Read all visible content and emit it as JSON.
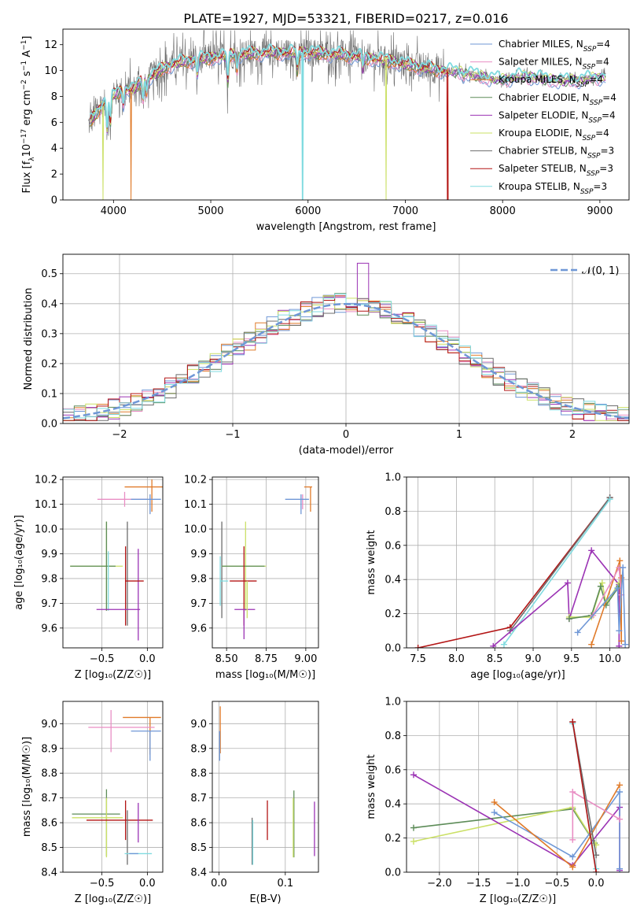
{
  "figure_title": "PLATE=1927, MJD=53321, FIBERID=0217, z=0.016",
  "colors": {
    "Chabrier MILES": "#6f97d6",
    "Salpeter MILES": "#e98ec4",
    "Kroupa MILES": "#e07b2a",
    "Chabrier ELODIE": "#5d8c58",
    "Salpeter ELODIE": "#9b33b4",
    "Kroupa ELODIE": "#cbe066",
    "Chabrier STELIB": "#6d6d6d",
    "Salpeter STELIB": "#b31515",
    "Kroupa STELIB": "#80dbe0",
    "normal": "#6f97d6",
    "grid": "#b0b0b0"
  },
  "chart_data": [
    {
      "type": "line",
      "id": "spectrum",
      "title": "PLATE=1927, MJD=53321, FIBERID=0217, z=0.016",
      "xlabel": "wavelength [Angstrom, rest frame]",
      "ylabel_parts": [
        "Flux [f",
        "λ",
        "10",
        "−17",
        " erg cm",
        "−2",
        " s",
        "−1",
        " A",
        "−1",
        "]"
      ],
      "xlim": [
        3480,
        9300
      ],
      "ylim": [
        0,
        13.2
      ],
      "xticks": [
        4000,
        5000,
        6000,
        7000,
        8000,
        9000
      ],
      "yticks": [
        0,
        2,
        4,
        6,
        8,
        10,
        12
      ],
      "legend_position": "top-right",
      "legend": [
        {
          "name": "Chabrier MILES",
          "nssp": "4"
        },
        {
          "name": "Salpeter MILES",
          "nssp": "4"
        },
        {
          "name": "Kroupa MILES",
          "nssp": "4"
        },
        {
          "name": "Chabrier ELODIE",
          "nssp": "4"
        },
        {
          "name": "Salpeter ELODIE",
          "nssp": "4"
        },
        {
          "name": "Kroupa ELODIE",
          "nssp": "4"
        },
        {
          "name": "Chabrier STELIB",
          "nssp": "3"
        },
        {
          "name": "Salpeter STELIB",
          "nssp": "3"
        },
        {
          "name": "Kroupa STELIB",
          "nssp": "3"
        }
      ],
      "continuum": {
        "x": [
          3740,
          3800,
          3900,
          4000,
          4100,
          4200,
          4300,
          4400,
          4500,
          4600,
          4800,
          5000,
          5200,
          5400,
          5600,
          5800,
          6000,
          6200,
          6400,
          6600,
          6800,
          7000,
          7200,
          7400,
          7600,
          7800,
          8000,
          8200,
          8400,
          8600,
          8800,
          9000
        ],
        "y": [
          5.8,
          6.4,
          7.6,
          8.1,
          8.6,
          8.5,
          9.3,
          9.6,
          10.1,
          10.5,
          10.8,
          11.0,
          11.2,
          11.3,
          11.4,
          11.4,
          11.4,
          11.3,
          11.2,
          11.0,
          10.8,
          10.5,
          10.2,
          10.0,
          9.9,
          9.5,
          9.3,
          9.6,
          9.4,
          9.2,
          9.3,
          9.5
        ]
      },
      "dropouts": [
        {
          "series": "Kroupa STELIB",
          "x": 5945
        },
        {
          "series": "Kroupa ELODIE",
          "x": 6800
        },
        {
          "series": "Salpeter STELIB",
          "x": 7430
        },
        {
          "series": "Kroupa MILES",
          "x": 4180
        },
        {
          "series": "Kroupa ELODIE",
          "x": 3890
        }
      ]
    },
    {
      "type": "histogram",
      "id": "residuals",
      "xlabel": "(data-model)/error",
      "ylabel": "Normed distribution",
      "xlim": [
        -2.5,
        2.5
      ],
      "ylim": [
        0,
        0.565
      ],
      "xticks": [
        -2,
        -1,
        0,
        1,
        2
      ],
      "yticks": [
        0,
        0.1,
        0.2,
        0.3,
        0.4,
        0.5
      ],
      "bin_width": 0.1,
      "bin_start": -2.5,
      "legend_position": "top-right",
      "normal_label": "𝒩(0, 1)"
    },
    {
      "type": "scatter",
      "id": "age-vs-Z",
      "xlabel": "Z [log₁₀(Z/Z☉)]",
      "ylabel": "age  [log₁₀(age/yr)]",
      "xlim": [
        -0.93,
        0.17
      ],
      "ylim": [
        9.52,
        10.21
      ],
      "xticks": [
        -0.5,
        0.0
      ],
      "yticks": [
        9.6,
        9.7,
        9.8,
        9.9,
        10.0,
        10.1,
        10.2
      ],
      "points": [
        {
          "series": "Kroupa MILES",
          "x": 0.05,
          "y": 10.17,
          "xerr": [
            0.3,
            0.12
          ],
          "yerr": [
            0.1,
            0.03
          ]
        },
        {
          "series": "Salpeter MILES",
          "x": -0.25,
          "y": 10.12,
          "xerr": [
            0.3,
            0.25
          ],
          "yerr": [
            0.03,
            0.03
          ]
        },
        {
          "series": "Chabrier MILES",
          "x": 0.03,
          "y": 10.12,
          "xerr": [
            0.21,
            0.12
          ],
          "yerr": [
            0.06,
            0.02
          ]
        },
        {
          "series": "Salpeter ELODIE",
          "x": -0.1,
          "y": 9.79,
          "xerr": [
            0.0,
            0.0
          ],
          "yerr": [
            0.24,
            0.13
          ]
        },
        {
          "series": "Chabrier STELIB",
          "x": -0.22,
          "y": 9.79,
          "xerr": [
            0.0,
            0.0
          ],
          "yerr": [
            0.18,
            0.24
          ]
        },
        {
          "series": "Salpeter STELIB",
          "x": -0.24,
          "y": 9.79,
          "xerr": [
            0.0,
            0.2
          ],
          "yerr": [
            0.18,
            0.14
          ]
        },
        {
          "series": "Kroupa ELODIE",
          "x": -0.45,
          "y": 9.85,
          "xerr": [
            0.4,
            0.18
          ],
          "yerr": [
            0.18,
            0.18
          ]
        },
        {
          "series": "Chabrier ELODIE",
          "x": -0.45,
          "y": 9.85,
          "xerr": [
            0.4,
            0.1
          ],
          "yerr": [
            0.18,
            0.18
          ]
        },
        {
          "series": "Kroupa STELIB",
          "x": -0.43,
          "y": 9.77,
          "xerr": [
            0.0,
            0.0
          ],
          "yerr": [
            0.1,
            0.14
          ]
        },
        {
          "series": "Salpeter ELODIE",
          "x": -0.32,
          "y": 9.675,
          "xerr": [
            0.24,
            0.24
          ],
          "yerr": [
            0.0,
            0.0
          ]
        }
      ]
    },
    {
      "type": "scatter",
      "id": "age-vs-mass",
      "xlabel": "mass [log₁₀(M/M☉)]",
      "xlim": [
        8.41,
        9.08
      ],
      "ylim": [
        9.52,
        10.21
      ],
      "xticks": [
        8.5,
        8.75,
        9.0
      ],
      "yticks": [
        9.6,
        9.7,
        9.8,
        9.9,
        10.0,
        10.1,
        10.2
      ],
      "points": [
        {
          "series": "Kroupa MILES",
          "x": 9.03,
          "y": 10.17,
          "xerr": [
            0.0,
            0.0
          ],
          "yerr": [
            0.1,
            0.0
          ]
        },
        {
          "series": "Kroupa MILES",
          "x": 8.99,
          "y": 10.17,
          "xerr": [
            0.0,
            0.05
          ],
          "yerr": [
            0.0,
            0.0
          ]
        },
        {
          "series": "Salpeter MILES",
          "x": 8.98,
          "y": 10.12,
          "xerr": [
            0.0,
            0.0
          ],
          "yerr": [
            0.04,
            0.02
          ]
        },
        {
          "series": "Chabrier MILES",
          "x": 8.97,
          "y": 10.12,
          "xerr": [
            0.1,
            0.05
          ],
          "yerr": [
            0.06,
            0.02
          ]
        },
        {
          "series": "Chabrier STELIB",
          "x": 8.47,
          "y": 9.82,
          "xerr": [
            0.0,
            0.0
          ],
          "yerr": [
            0.18,
            0.21
          ]
        },
        {
          "series": "Kroupa ELODIE",
          "x": 8.62,
          "y": 9.85,
          "xerr": [
            0.15,
            0.13
          ],
          "yerr": [
            0.18,
            0.18
          ]
        },
        {
          "series": "Chabrier ELODIE",
          "x": 8.62,
          "y": 9.85,
          "xerr": [
            0.15,
            0.12
          ],
          "yerr": [
            0.0,
            0.0
          ]
        },
        {
          "series": "Kroupa STELIB",
          "x": 8.46,
          "y": 9.79,
          "xerr": [
            0.0,
            0.05
          ],
          "yerr": [
            0.1,
            0.1
          ]
        },
        {
          "series": "Salpeter STELIB",
          "x": 8.61,
          "y": 9.79,
          "xerr": [
            0.09,
            0.08
          ],
          "yerr": [
            0.18,
            0.14
          ]
        },
        {
          "series": "Salpeter ELODIE",
          "x": 8.61,
          "y": 9.675,
          "xerr": [
            0.06,
            0.07
          ],
          "yerr": [
            0.12,
            0.0
          ]
        },
        {
          "series": "Kroupa ELODIE",
          "x": 8.63,
          "y": 9.79,
          "xerr": [
            0.0,
            0.0
          ],
          "yerr": [
            0.15,
            0.0
          ]
        }
      ]
    },
    {
      "type": "line",
      "id": "weight-vs-age",
      "xlabel": "age  [log₁₀(age/yr)]",
      "ylabel": "mass weight",
      "xlim": [
        7.35,
        10.25
      ],
      "ylim": [
        0,
        1.0
      ],
      "xticks": [
        7.5,
        8.0,
        8.5,
        9.0,
        9.5,
        10.0
      ],
      "yticks": [
        0.0,
        0.2,
        0.4,
        0.6,
        0.8,
        1.0
      ],
      "series": [
        {
          "name": "Salpeter STELIB",
          "x": [
            7.5,
            8.7,
            10.0
          ],
          "y": [
            0.0,
            0.12,
            0.88
          ]
        },
        {
          "name": "Chabrier STELIB",
          "x": [
            8.7,
            10.0
          ],
          "y": [
            0.1,
            0.88
          ]
        },
        {
          "name": "Kroupa STELIB",
          "x": [
            8.62,
            10.0
          ],
          "y": [
            0.02,
            0.87
          ]
        },
        {
          "name": "Salpeter ELODIE",
          "x": [
            8.48,
            9.45,
            9.47,
            9.76,
            10.12,
            10.12
          ],
          "y": [
            0.01,
            0.38,
            0.17,
            0.57,
            0.37,
            0.01
          ]
        },
        {
          "name": "Kroupa ELODIE",
          "x": [
            9.47,
            9.76,
            9.9,
            9.95,
            10.12
          ],
          "y": [
            0.18,
            0.18,
            0.38,
            0.26,
            0.38
          ]
        },
        {
          "name": "Chabrier ELODIE",
          "x": [
            9.47,
            9.76,
            9.88,
            9.95,
            10.12
          ],
          "y": [
            0.17,
            0.19,
            0.36,
            0.25,
            0.36
          ]
        },
        {
          "name": "Kroupa MILES",
          "x": [
            9.76,
            10.13,
            10.15,
            10.15
          ],
          "y": [
            0.02,
            0.51,
            0.04,
            0.41
          ]
        },
        {
          "name": "Salpeter MILES",
          "x": [
            9.78,
            10.12,
            10.15
          ],
          "y": [
            0.19,
            0.47,
            0.31
          ]
        },
        {
          "name": "Chabrier MILES",
          "x": [
            9.58,
            10.1,
            10.12,
            10.17,
            10.2
          ],
          "y": [
            0.09,
            0.35,
            0.1,
            0.47,
            0.02
          ]
        }
      ]
    },
    {
      "type": "scatter",
      "id": "mass-vs-Z",
      "xlabel": "Z [log₁₀(Z/Z☉)]",
      "ylabel": "mass [log₁₀(M/M☉)]",
      "xlim": [
        -0.93,
        0.17
      ],
      "ylim": [
        8.4,
        9.09
      ],
      "xticks": [
        -0.5,
        0.0
      ],
      "yticks": [
        8.4,
        8.5,
        8.6,
        8.7,
        8.8,
        8.9,
        9.0
      ],
      "points": [
        {
          "series": "Kroupa MILES",
          "x": 0.03,
          "y": 9.025,
          "xerr": [
            0.3,
            0.12
          ],
          "yerr": [
            0.15,
            0.0
          ]
        },
        {
          "series": "Salpeter MILES",
          "x": -0.4,
          "y": 8.985,
          "xerr": [
            0.25,
            0.48
          ],
          "yerr": [
            0.1,
            0.07
          ]
        },
        {
          "series": "Chabrier MILES",
          "x": 0.03,
          "y": 8.97,
          "xerr": [
            0.21,
            0.12
          ],
          "yerr": [
            0.12,
            0.0
          ]
        },
        {
          "series": "Chabrier ELODIE",
          "x": -0.45,
          "y": 8.635,
          "xerr": [
            0.38,
            0.15
          ],
          "yerr": [
            0.17,
            0.1
          ]
        },
        {
          "series": "Kroupa ELODIE",
          "x": -0.45,
          "y": 8.62,
          "xerr": [
            0.38,
            0.18
          ],
          "yerr": [
            0.16,
            0.08
          ]
        },
        {
          "series": "Salpeter STELIB",
          "x": -0.24,
          "y": 8.61,
          "xerr": [
            0.43,
            0.3
          ],
          "yerr": [
            0.08,
            0.08
          ]
        },
        {
          "series": "Chabrier STELIB",
          "x": -0.22,
          "y": 8.55,
          "xerr": [
            0.0,
            0.0
          ],
          "yerr": [
            0.12,
            0.1
          ]
        },
        {
          "series": "Salpeter ELODIE",
          "x": -0.1,
          "y": 8.6,
          "xerr": [
            0.0,
            0.0
          ],
          "yerr": [
            0.08,
            0.08
          ]
        },
        {
          "series": "Kroupa STELIB",
          "x": -0.1,
          "y": 8.475,
          "xerr": [
            0.15,
            0.15
          ],
          "yerr": [
            0.0,
            0.0
          ]
        },
        {
          "series": "Chabrier MILES",
          "x": -0.1,
          "y": 8.475,
          "xerr": [
            0.1,
            0.0
          ],
          "yerr": [
            0.0,
            0.0
          ]
        }
      ]
    },
    {
      "type": "scatter",
      "id": "mass-vs-ebv",
      "xlabel": "E(B-V)",
      "xlim": [
        -0.01,
        0.15
      ],
      "ylim": [
        8.4,
        9.09
      ],
      "xticks": [
        0.0,
        0.1
      ],
      "yticks": [
        8.4,
        8.5,
        8.6,
        8.7,
        8.8,
        8.9,
        9.0
      ],
      "points": [
        {
          "series": "Kroupa MILES",
          "x": 0.002,
          "y": 8.98,
          "yerr": [
            0.1,
            0.09
          ]
        },
        {
          "series": "Chabrier MILES",
          "x": 0.001,
          "y": 8.92,
          "yerr": [
            0.07,
            0.05
          ]
        },
        {
          "series": "Chabrier STELIB",
          "x": 0.05,
          "y": 8.55,
          "yerr": [
            0.12,
            0.07
          ]
        },
        {
          "series": "Kroupa STELIB",
          "x": 0.051,
          "y": 8.54,
          "yerr": [
            0.11,
            0.07
          ]
        },
        {
          "series": "Salpeter STELIB",
          "x": 0.073,
          "y": 8.61,
          "yerr": [
            0.08,
            0.08
          ]
        },
        {
          "series": "Chabrier ELODIE",
          "x": 0.113,
          "y": 8.6,
          "yerr": [
            0.14,
            0.13
          ]
        },
        {
          "series": "Kroupa ELODIE",
          "x": 0.112,
          "y": 8.58,
          "yerr": [
            0.12,
            0.12
          ]
        },
        {
          "series": "Salpeter ELODIE",
          "x": 0.144,
          "y": 8.575,
          "yerr": [
            0.11,
            0.11
          ]
        }
      ]
    },
    {
      "type": "line",
      "id": "weight-vs-Z",
      "xlabel": "Z [log₁₀(Z/Z☉)]",
      "ylabel": "mass weight",
      "xlim": [
        -2.42,
        0.42
      ],
      "ylim": [
        0,
        1.0
      ],
      "xticks": [
        -2.0,
        -1.5,
        -1.0,
        -0.5,
        0.0
      ],
      "yticks": [
        0.0,
        0.2,
        0.4,
        0.6,
        0.8,
        1.0
      ],
      "series": [
        {
          "name": "Chabrier ELODIE",
          "x": [
            -2.33,
            -0.3,
            -0.02
          ],
          "y": [
            0.26,
            0.37,
            0.17
          ]
        },
        {
          "name": "Kroupa ELODIE",
          "x": [
            -2.33,
            -0.3,
            0.0
          ],
          "y": [
            0.18,
            0.38,
            0.16
          ]
        },
        {
          "name": "Salpeter ELODIE",
          "x": [
            -2.33,
            -0.3,
            0.3,
            0.3
          ],
          "y": [
            0.57,
            0.04,
            0.38,
            0.01
          ]
        },
        {
          "name": "Chabrier MILES",
          "x": [
            -1.3,
            -0.3,
            0.3,
            0.3
          ],
          "y": [
            0.35,
            0.09,
            0.47,
            0.02
          ]
        },
        {
          "name": "Kroupa MILES",
          "x": [
            -1.3,
            -0.3,
            0.3
          ],
          "y": [
            0.41,
            0.03,
            0.51
          ]
        },
        {
          "name": "Salpeter MILES",
          "x": [
            -0.3,
            -0.3,
            0.3
          ],
          "y": [
            0.19,
            0.47,
            0.31
          ]
        },
        {
          "name": "Chabrier STELIB",
          "x": [
            -0.3,
            0.0
          ],
          "y": [
            0.88,
            0.1
          ]
        },
        {
          "name": "Kroupa STELIB",
          "x": [
            -0.3,
            0.0
          ],
          "y": [
            0.87,
            0.02
          ]
        },
        {
          "name": "Salpeter STELIB",
          "x": [
            -0.3,
            0.0
          ],
          "y": [
            0.88,
            0.0
          ]
        }
      ]
    }
  ]
}
